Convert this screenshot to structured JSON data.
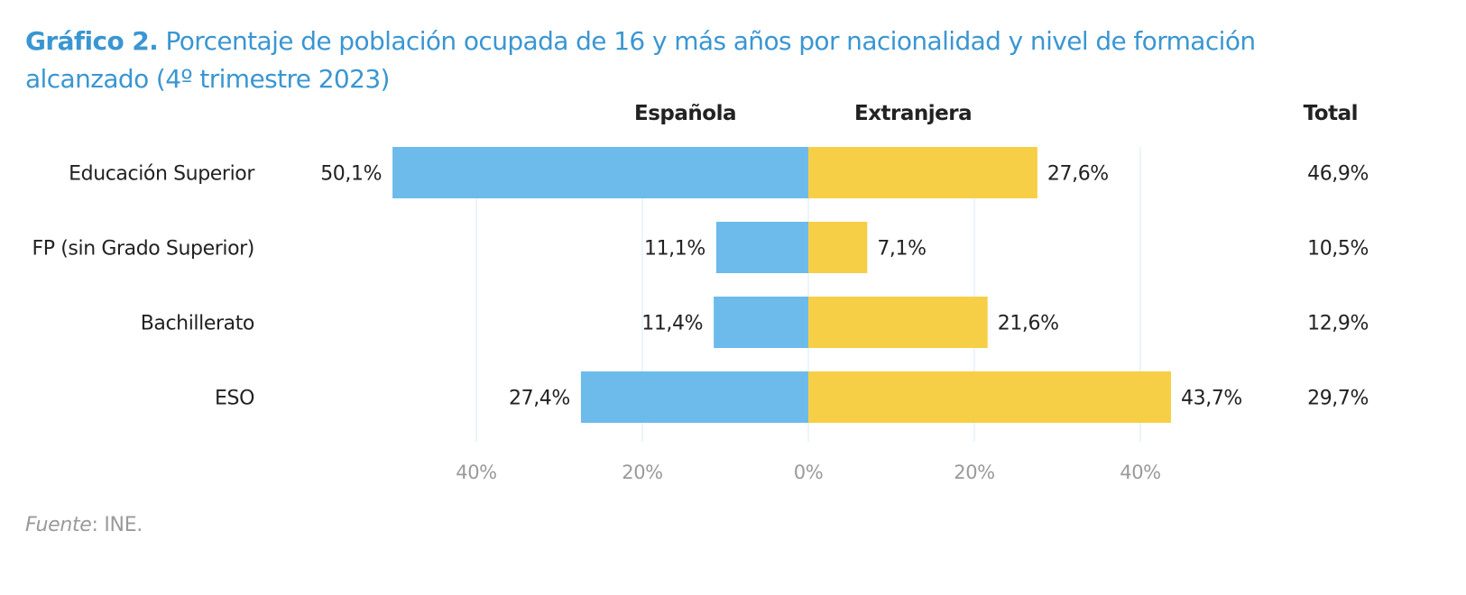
{
  "title": {
    "prefix": "Gráfico 2.",
    "text": "Porcentaje de población ocupada de 16 y más años por nacionalidad y nivel de formación alcanzado (4º trimestre 2023)"
  },
  "colors": {
    "title": "#3a96d2",
    "espanola": "#6cbbea",
    "extranjera": "#f7cf46",
    "grid": "#d8eaf6",
    "text": "#222222",
    "tick": "#9a9a9a"
  },
  "source": {
    "label": "Fuente",
    "text": ": INE."
  },
  "chart_data": {
    "type": "bar",
    "orientation": "horizontal-diverging",
    "title": "Gráfico 2. Porcentaje de población ocupada de 16 y más años por nacionalidad y nivel de formación alcanzado (4º trimestre 2023)",
    "categories": [
      "Educación Superior",
      "FP (sin Grado Superior)",
      "Bachillerato",
      "ESO"
    ],
    "series": [
      {
        "name": "Española",
        "direction": "left",
        "values": [
          50.1,
          11.1,
          11.4,
          27.4
        ],
        "labels": [
          "50,1%",
          "11,1%",
          "11,4%",
          "27,4%"
        ]
      },
      {
        "name": "Extranjera",
        "direction": "right",
        "values": [
          27.6,
          7.1,
          21.6,
          43.7
        ],
        "labels": [
          "27,6%",
          "7,1%",
          "21,6%",
          "43,7%"
        ]
      }
    ],
    "total": {
      "header": "Total",
      "values": [
        46.9,
        10.5,
        12.9,
        29.7
      ],
      "labels": [
        "46,9%",
        "10,5%",
        "12,9%",
        "29,7%"
      ]
    },
    "xticks": [
      {
        "value": -40,
        "label": "40%"
      },
      {
        "value": -20,
        "label": "20%"
      },
      {
        "value": 0,
        "label": "0%"
      },
      {
        "value": 20,
        "label": "20%"
      },
      {
        "value": 40,
        "label": "40%"
      }
    ],
    "xlim": [
      -50,
      50
    ],
    "xlabel": "",
    "ylabel": "",
    "grid": true,
    "legend": "column headers above bars"
  }
}
